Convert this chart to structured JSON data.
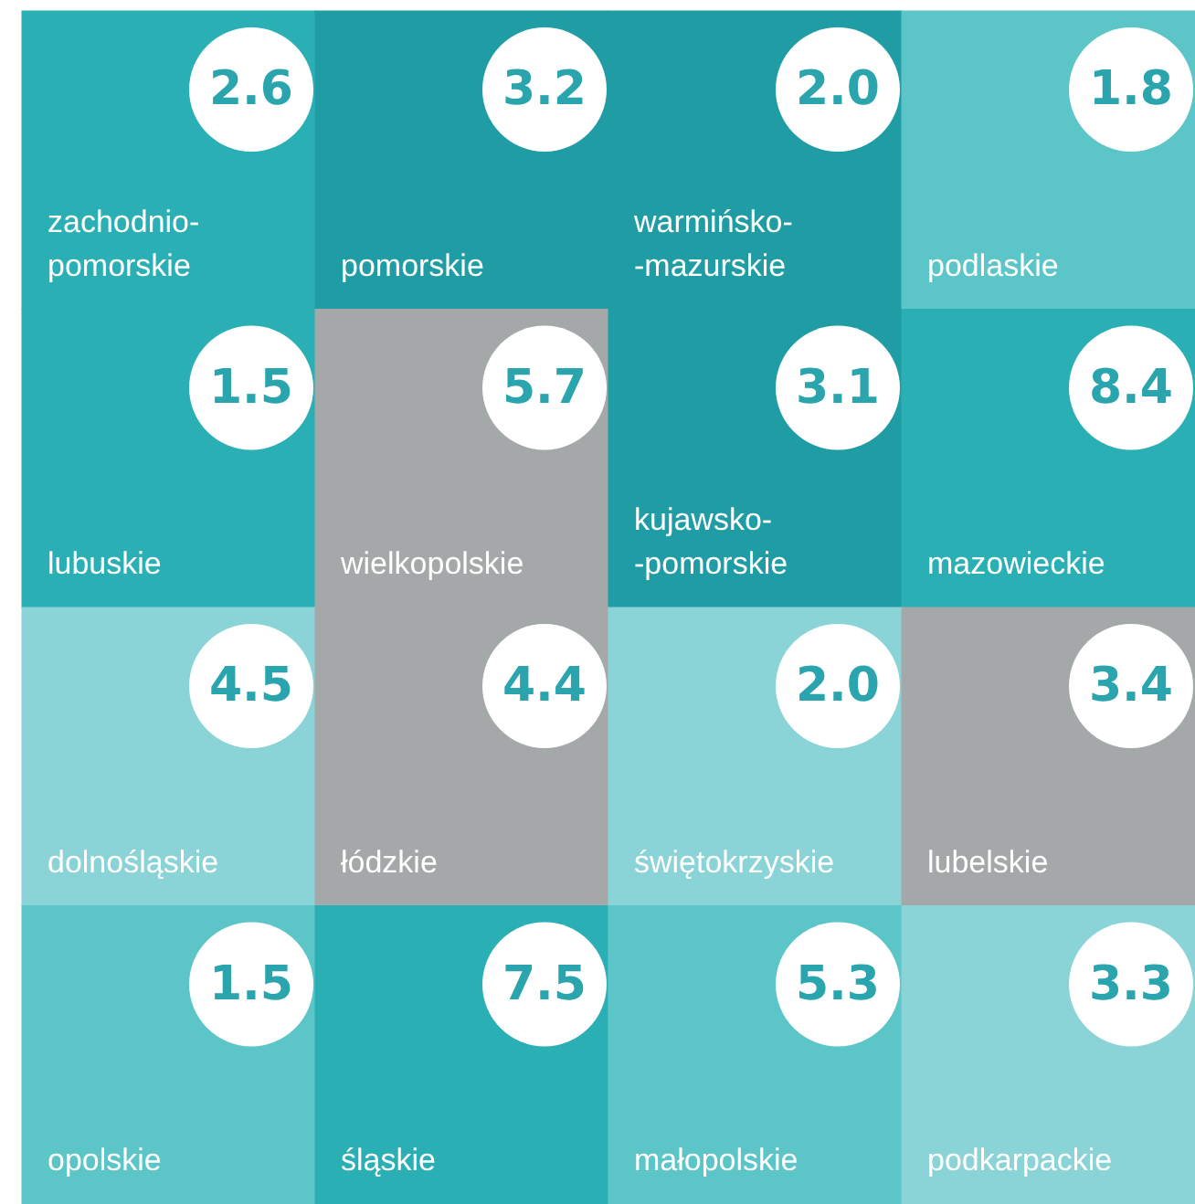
{
  "chart_data": {
    "type": "heatmap",
    "categories": [
      null,
      null,
      null,
      null
    ],
    "y_categories": [
      null,
      null,
      null,
      null
    ],
    "cells": [
      [
        2.6,
        3.2,
        2.0,
        1.8
      ],
      [
        1.5,
        5.7,
        3.1,
        8.4
      ],
      [
        4.5,
        4.4,
        2.0,
        3.4
      ],
      [
        1.5,
        7.5,
        5.3,
        3.3
      ]
    ],
    "data_labels": true,
    "cell_labels": [
      [
        "2.6",
        "3.2",
        "2.0",
        "1.8"
      ],
      [
        "1.5",
        "5.7",
        "3.1",
        "8.4"
      ],
      [
        "4.5",
        "4.4",
        "2.0",
        "3.4"
      ],
      [
        "1.5",
        "7.5",
        "5.3",
        "3.3"
      ]
    ],
    "annotations": [
      "zachodnio-\npomorskie",
      "pomorskie",
      "warmińsko-\n-mazurskie",
      "podlaskie",
      "lubuskie",
      "wielkopolskie",
      "kujawsko-\n-pomorskie",
      "mazowieckie",
      "dolnośląskie",
      "łódzkie",
      "świętokrzyskie",
      "lubelskie",
      "opolskie",
      "śląskie",
      "małopolskie",
      "podkarpackie"
    ],
    "colors": [
      [
        "#2aafb5",
        "#209ca5",
        "#209ca5",
        "#5bc5c8"
      ],
      [
        "#2aafb5",
        "#a5a8a9",
        "#209ca5",
        "#2aafb5"
      ],
      [
        "#8ad3d6",
        "#a5a8a9",
        "#8ad3d6",
        "#a5a8a9"
      ],
      [
        "#5bc5c8",
        "#2aafb5",
        "#5bc5c8",
        "#8ad3d6"
      ]
    ]
  }
}
